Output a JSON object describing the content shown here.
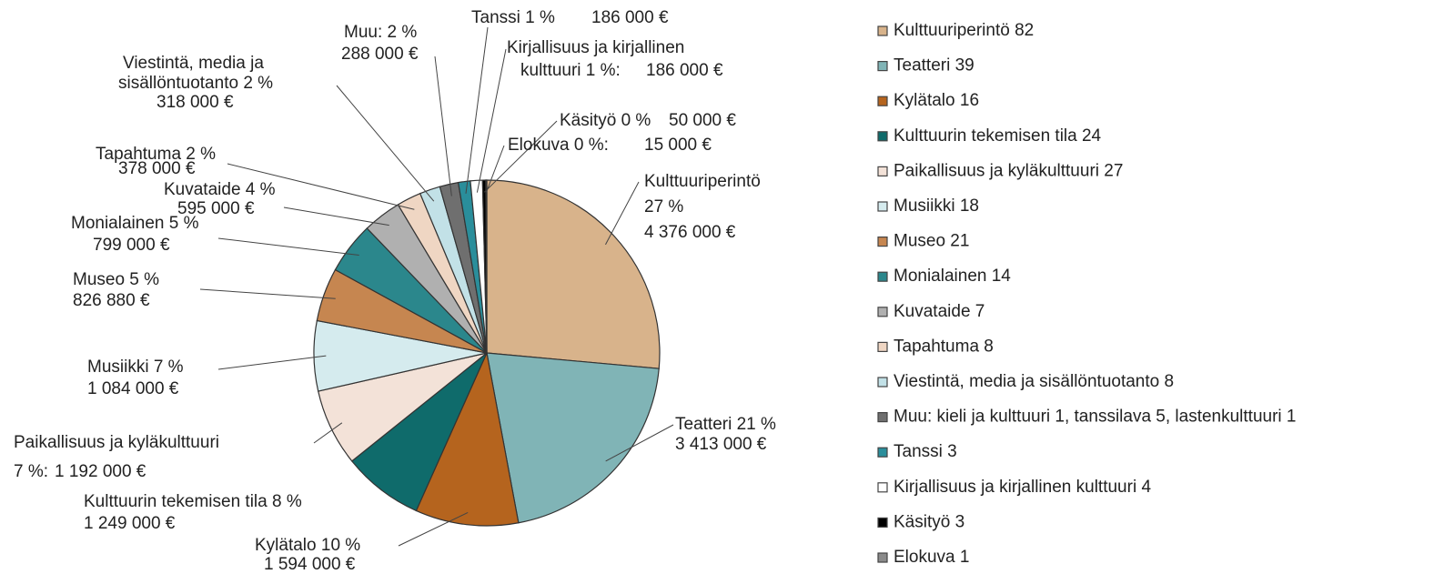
{
  "chart_data": {
    "type": "pie",
    "categories": [
      "Kulttuuriperintö 82",
      "Teatteri 39",
      "Kylätalo 16",
      "Kulttuurin tekemisen tila 24",
      "Paikallisuus ja kyläkulttuuri 27",
      "Musiikki 18",
      "Museo 21",
      "Monialainen 14",
      "Kuvataide 7",
      "Tapahtuma 8",
      "Viestintä, media ja sisällöntuotanto 8",
      "Muu: kieli ja kulttuuri 1, tanssilava 5, lastenkulttuuri 1",
      "Tanssi 3",
      "Kirjallisuus ja kirjallinen kulttuuri 4",
      "Käsityö 3",
      "Elokuva 1"
    ],
    "values": [
      4376000,
      3413000,
      1594000,
      1249000,
      1192000,
      1084000,
      826880,
      799000,
      595000,
      378000,
      318000,
      288000,
      186000,
      186000,
      50000,
      15000
    ],
    "value_labels": [
      "4 376 000 €",
      "3 413 000 €",
      "1 594 000 €",
      "1 249 000 €",
      "1 192 000 €",
      "1 084 000 €",
      "826 880 €",
      "799 000 €",
      "595 000 €",
      "378 000 €",
      "318 000 €",
      "288 000 €",
      "186 000 €",
      "186 000 €",
      "50 000 €",
      "15 000 €"
    ],
    "slice_labels": [
      [
        "Kulttuuriperintö",
        "27 %"
      ],
      [
        "Teatteri 21 %"
      ],
      [
        "Kylätalo 10 %"
      ],
      [
        "Kulttuurin tekemisen tila 8 %"
      ],
      [
        "Paikallisuus ja kyläkulttuuri",
        "7 %:"
      ],
      [
        "Musiikki 7 %"
      ],
      [
        "Museo 5 %"
      ],
      [
        "Monialainen 5 %"
      ],
      [
        "Kuvataide 4 %"
      ],
      [
        "Tapahtuma 2 %"
      ],
      [
        "Viestintä, media ja",
        "sisällöntuotanto 2 %"
      ],
      [
        "Muu: 2 %"
      ],
      [
        "Tanssi 1 %"
      ],
      [
        "Kirjallisuus ja kirjallinen",
        "kulttuuri 1 %:"
      ],
      [
        "Käsityö 0 %"
      ],
      [
        "Elokuva 0 %:"
      ]
    ],
    "colors": [
      "#d8b38b",
      "#80b4b6",
      "#b5641e",
      "#0f6b6b",
      "#f3e2d8",
      "#d5ebee",
      "#c68650",
      "#2b878c",
      "#b0b0b0",
      "#efd6c3",
      "#c2e1e7",
      "#6f6f6f",
      "#2a8e9b",
      "#ffffff",
      "#000000",
      "#8a8a8a"
    ]
  }
}
